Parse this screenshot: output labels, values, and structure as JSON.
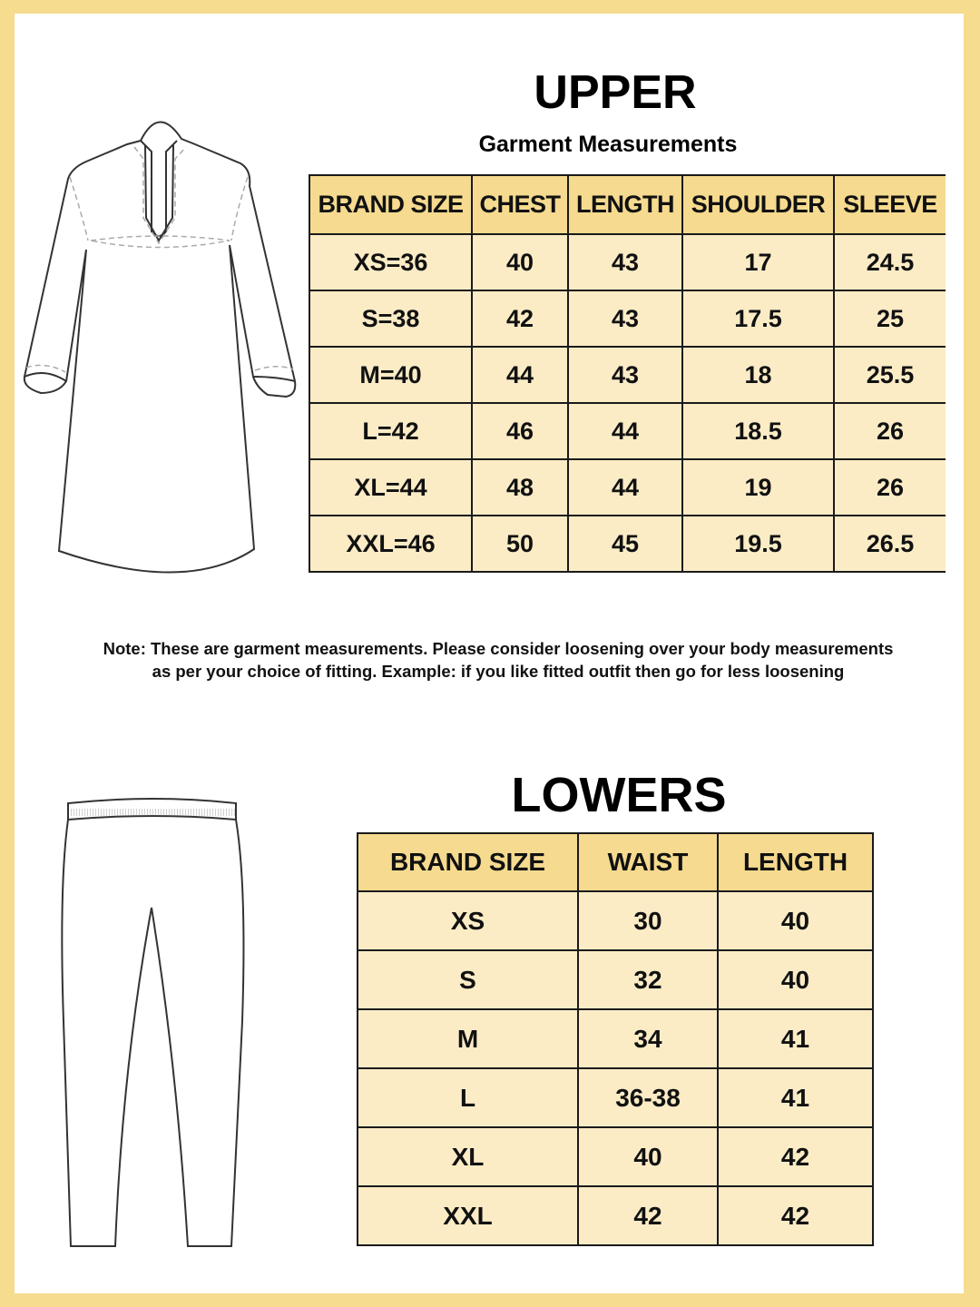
{
  "upper": {
    "title": "UPPER",
    "subtitle": "Garment Measurements",
    "headers": [
      "BRAND SIZE",
      "CHEST",
      "LENGTH",
      "SHOULDER",
      "SLEEVE"
    ],
    "rows": [
      [
        "XS=36",
        "40",
        "43",
        "17",
        "24.5"
      ],
      [
        "S=38",
        "42",
        "43",
        "17.5",
        "25"
      ],
      [
        "M=40",
        "44",
        "43",
        "18",
        "25.5"
      ],
      [
        "L=42",
        "46",
        "44",
        "18.5",
        "26"
      ],
      [
        "XL=44",
        "48",
        "44",
        "19",
        "26"
      ],
      [
        "XXL=46",
        "50",
        "45",
        "19.5",
        "26.5"
      ]
    ]
  },
  "note": {
    "line1": "Note: These are garment measurements. Please consider loosening over your body measurements",
    "line2": "as per your choice of fitting. Example: if you like fitted outfit then go for less loosening"
  },
  "lowers": {
    "title": "LOWERS",
    "headers": [
      "BRAND SIZE",
      "WAIST",
      "LENGTH"
    ],
    "rows": [
      [
        "XS",
        "30",
        "40"
      ],
      [
        "S",
        "32",
        "40"
      ],
      [
        "M",
        "34",
        "41"
      ],
      [
        "L",
        "36-38",
        "41"
      ],
      [
        "XL",
        "40",
        "42"
      ],
      [
        "XXL",
        "42",
        "42"
      ]
    ]
  },
  "colors": {
    "border_frame": "#f5dc8f",
    "header_fill": "#f5da8f",
    "row_fill": "#fbecc6"
  }
}
